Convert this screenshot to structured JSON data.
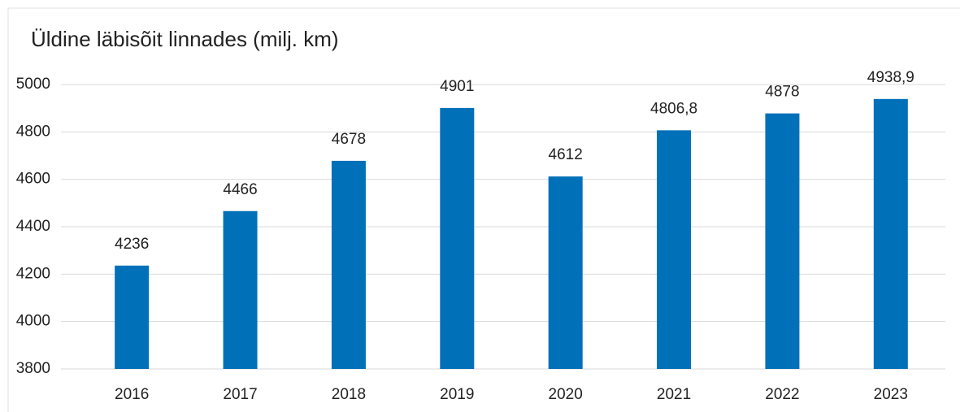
{
  "chart_data": {
    "type": "bar",
    "title": "Üldine läbisõit linnades (milj. km)",
    "categories": [
      "2016",
      "2017",
      "2018",
      "2019",
      "2020",
      "2021",
      "2022",
      "2023"
    ],
    "values": [
      4236,
      4466,
      4678,
      4901,
      4612,
      4806.8,
      4878,
      4938.9
    ],
    "value_labels": [
      "4236",
      "4466",
      "4678",
      "4901",
      "4612",
      "4806,8",
      "4878",
      "4938,9"
    ],
    "color": "#0070b8",
    "ylim": [
      3800,
      5000
    ],
    "yticks": [
      3800,
      4000,
      4200,
      4400,
      4600,
      4800,
      5000
    ],
    "grid": true
  }
}
